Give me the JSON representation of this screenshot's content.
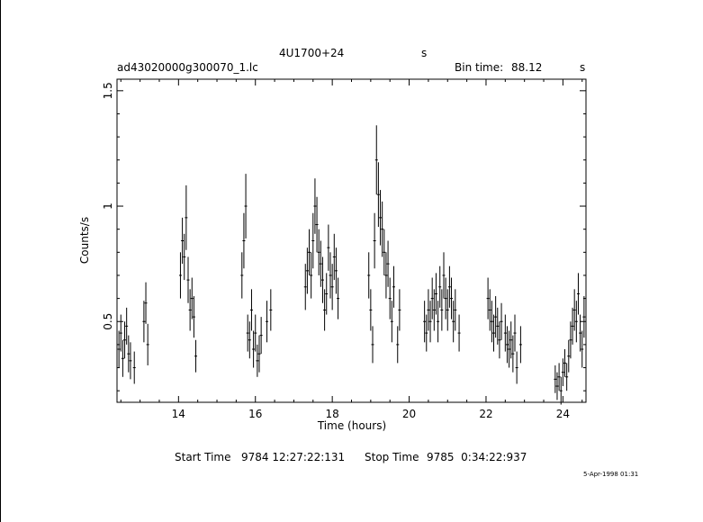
{
  "header": {
    "object": "4U1700+24",
    "object_unit": "s",
    "filename": "ad43020000g300070_1.lc",
    "bin_label": "Bin time:",
    "bin_value": "88.12",
    "bin_unit": "s"
  },
  "footer": {
    "start_label": "Start Time",
    "start_value": "9784 12:27:22:131",
    "stop_label": "Stop Time",
    "stop_value": "9785  0:34:22:937",
    "print_date": "5-Apr-1998 01:31"
  },
  "chart_data": {
    "type": "scatter",
    "title": "4U1700+24",
    "xlabel": "Time (hours)",
    "ylabel": "Counts/s",
    "xlim": [
      12.4,
      24.6
    ],
    "ylim": [
      0.15,
      1.55
    ],
    "x_ticks": [
      14,
      16,
      18,
      20,
      22,
      24
    ],
    "y_ticks": [
      0.5,
      1,
      1.5
    ],
    "x_tick_labels": [
      "14",
      "16",
      "18",
      "20",
      "22",
      "24"
    ],
    "y_tick_labels": [
      "0.5",
      "1",
      "1.5"
    ],
    "grid": false,
    "error_bars": "vertical",
    "series": [
      {
        "values": [
          [
            12.45,
            0.38,
            0.08
          ],
          [
            12.5,
            0.45,
            0.08
          ],
          [
            12.55,
            0.34,
            0.08
          ],
          [
            12.6,
            0.42,
            0.08
          ],
          [
            12.65,
            0.48,
            0.08
          ],
          [
            12.7,
            0.36,
            0.08
          ],
          [
            12.75,
            0.33,
            0.08
          ],
          [
            12.85,
            0.3,
            0.07
          ],
          [
            13.1,
            0.5,
            0.09
          ],
          [
            13.15,
            0.58,
            0.09
          ],
          [
            13.2,
            0.4,
            0.09
          ],
          [
            14.05,
            0.7,
            0.1
          ],
          [
            14.1,
            0.85,
            0.1
          ],
          [
            14.15,
            0.78,
            0.1
          ],
          [
            14.2,
            0.95,
            0.14
          ],
          [
            14.25,
            0.68,
            0.1
          ],
          [
            14.3,
            0.55,
            0.09
          ],
          [
            14.35,
            0.6,
            0.09
          ],
          [
            14.4,
            0.52,
            0.09
          ],
          [
            14.45,
            0.35,
            0.07
          ],
          [
            15.65,
            0.7,
            0.1
          ],
          [
            15.7,
            0.85,
            0.12
          ],
          [
            15.75,
            1.0,
            0.14
          ],
          [
            15.8,
            0.45,
            0.08
          ],
          [
            15.85,
            0.42,
            0.08
          ],
          [
            15.9,
            0.55,
            0.09
          ],
          [
            15.95,
            0.38,
            0.08
          ],
          [
            16.0,
            0.45,
            0.08
          ],
          [
            16.05,
            0.33,
            0.07
          ],
          [
            16.1,
            0.36,
            0.08
          ],
          [
            16.15,
            0.44,
            0.08
          ],
          [
            16.3,
            0.5,
            0.09
          ],
          [
            16.4,
            0.55,
            0.09
          ],
          [
            17.3,
            0.65,
            0.1
          ],
          [
            17.35,
            0.72,
            0.1
          ],
          [
            17.4,
            0.8,
            0.1
          ],
          [
            17.45,
            0.7,
            0.1
          ],
          [
            17.5,
            0.85,
            0.12
          ],
          [
            17.55,
            1.0,
            0.12
          ],
          [
            17.6,
            0.92,
            0.12
          ],
          [
            17.65,
            0.8,
            0.1
          ],
          [
            17.7,
            0.75,
            0.1
          ],
          [
            17.75,
            0.68,
            0.1
          ],
          [
            17.8,
            0.55,
            0.09
          ],
          [
            17.85,
            0.62,
            0.09
          ],
          [
            17.9,
            0.82,
            0.1
          ],
          [
            17.95,
            0.7,
            0.1
          ],
          [
            18.0,
            0.65,
            0.1
          ],
          [
            18.05,
            0.78,
            0.1
          ],
          [
            18.1,
            0.72,
            0.1
          ],
          [
            18.15,
            0.6,
            0.09
          ],
          [
            18.95,
            0.7,
            0.1
          ],
          [
            19.0,
            0.55,
            0.09
          ],
          [
            19.05,
            0.4,
            0.08
          ],
          [
            19.1,
            0.85,
            0.12
          ],
          [
            19.15,
            1.2,
            0.15
          ],
          [
            19.2,
            1.05,
            0.14
          ],
          [
            19.25,
            0.95,
            0.12
          ],
          [
            19.3,
            0.9,
            0.12
          ],
          [
            19.35,
            0.8,
            0.1
          ],
          [
            19.4,
            0.7,
            0.1
          ],
          [
            19.45,
            0.75,
            0.1
          ],
          [
            19.5,
            0.6,
            0.09
          ],
          [
            19.55,
            0.5,
            0.09
          ],
          [
            19.6,
            0.65,
            0.09
          ],
          [
            19.7,
            0.4,
            0.08
          ],
          [
            19.75,
            0.55,
            0.09
          ],
          [
            20.4,
            0.5,
            0.09
          ],
          [
            20.45,
            0.45,
            0.08
          ],
          [
            20.5,
            0.55,
            0.09
          ],
          [
            20.55,
            0.5,
            0.09
          ],
          [
            20.6,
            0.6,
            0.09
          ],
          [
            20.65,
            0.55,
            0.09
          ],
          [
            20.7,
            0.62,
            0.09
          ],
          [
            20.75,
            0.5,
            0.09
          ],
          [
            20.8,
            0.65,
            0.09
          ],
          [
            20.85,
            0.55,
            0.09
          ],
          [
            20.9,
            0.7,
            0.1
          ],
          [
            20.95,
            0.6,
            0.09
          ],
          [
            21.0,
            0.55,
            0.09
          ],
          [
            21.05,
            0.65,
            0.09
          ],
          [
            21.1,
            0.6,
            0.09
          ],
          [
            21.15,
            0.5,
            0.09
          ],
          [
            21.2,
            0.55,
            0.09
          ],
          [
            21.3,
            0.45,
            0.08
          ],
          [
            22.05,
            0.6,
            0.09
          ],
          [
            22.1,
            0.55,
            0.09
          ],
          [
            22.15,
            0.5,
            0.09
          ],
          [
            22.2,
            0.45,
            0.08
          ],
          [
            22.25,
            0.52,
            0.09
          ],
          [
            22.3,
            0.48,
            0.08
          ],
          [
            22.35,
            0.42,
            0.08
          ],
          [
            22.4,
            0.5,
            0.08
          ],
          [
            22.5,
            0.45,
            0.08
          ],
          [
            22.55,
            0.4,
            0.08
          ],
          [
            22.6,
            0.38,
            0.08
          ],
          [
            22.65,
            0.42,
            0.08
          ],
          [
            22.7,
            0.36,
            0.08
          ],
          [
            22.75,
            0.45,
            0.08
          ],
          [
            22.8,
            0.3,
            0.07
          ],
          [
            22.9,
            0.4,
            0.08
          ],
          [
            23.8,
            0.25,
            0.06
          ],
          [
            23.85,
            0.22,
            0.06
          ],
          [
            23.9,
            0.26,
            0.06
          ],
          [
            23.95,
            0.2,
            0.06
          ],
          [
            24.0,
            0.28,
            0.06
          ],
          [
            24.05,
            0.32,
            0.06
          ],
          [
            24.1,
            0.26,
            0.06
          ],
          [
            24.15,
            0.35,
            0.07
          ],
          [
            24.2,
            0.42,
            0.08
          ],
          [
            24.25,
            0.48,
            0.08
          ],
          [
            24.3,
            0.55,
            0.09
          ],
          [
            24.35,
            0.5,
            0.09
          ],
          [
            24.4,
            0.62,
            0.09
          ],
          [
            24.45,
            0.45,
            0.08
          ],
          [
            24.5,
            0.38,
            0.08
          ],
          [
            24.55,
            0.52,
            0.09
          ]
        ]
      }
    ]
  }
}
